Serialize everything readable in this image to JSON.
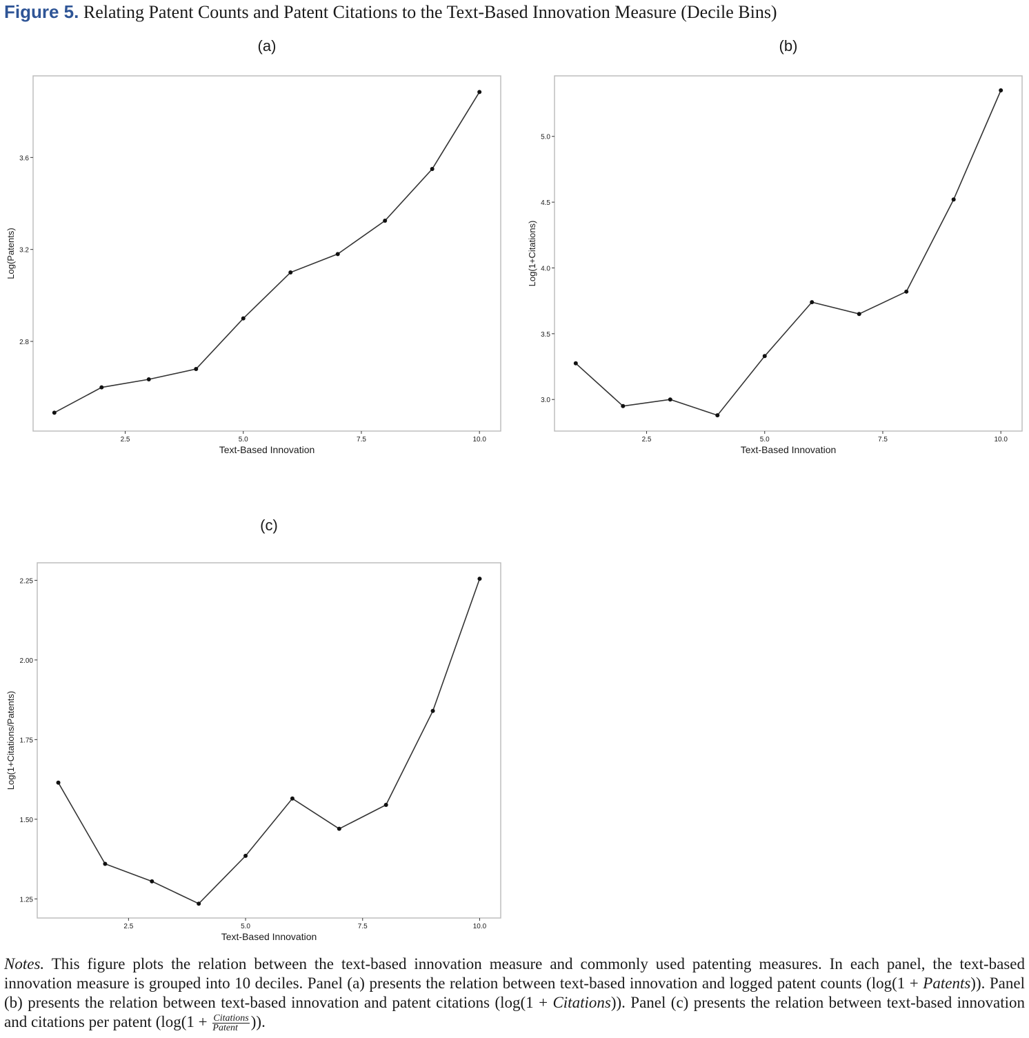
{
  "figure": {
    "label": "Figure 5.",
    "title": "Relating Patent Counts and Patent Citations to the Text-Based Innovation Measure (Decile Bins)"
  },
  "notes": {
    "lead": "Notes.",
    "part1": "This figure plots the relation between the text-based innovation measure and commonly used patenting measures. In each panel, the text-based innovation measure is grouped into 10 deciles. Panel (a) presents the relation between text-based innovation and logged patent counts (log(1 + ",
    "patents": "Patents",
    "part2": ")). Panel (b) presents the relation between text-based innovation and patent citations (log(1 + ",
    "citations": "Citations",
    "part3": ")). Panel (c) presents the relation between text-based innovation and citations per patent (log(1 + ",
    "frac_num": "Citations",
    "frac_den": "Patent",
    "part4": "))."
  },
  "chart_data": [
    {
      "type": "line",
      "panel": "(a)",
      "xlabel": "Text-Based Innovation",
      "ylabel": "Log(Patents)",
      "x": [
        1,
        2,
        3,
        4,
        5,
        6,
        7,
        8,
        9,
        10
      ],
      "values": [
        2.49,
        2.6,
        2.635,
        2.68,
        2.9,
        3.1,
        3.18,
        3.325,
        3.55,
        3.885
      ],
      "xlim": [
        0.55,
        10.45
      ],
      "ylim": [
        2.41,
        3.955
      ],
      "xticks": [
        2.5,
        5.0,
        7.5,
        10.0
      ],
      "xticklabels": [
        "2.5",
        "5.0",
        "7.5",
        "10.0"
      ],
      "yticks": [
        2.8,
        3.2,
        3.6
      ],
      "yticklabels": [
        "2.8",
        "3.2",
        "3.6"
      ]
    },
    {
      "type": "line",
      "panel": "(b)",
      "xlabel": "Text-Based Innovation",
      "ylabel": "Log(1+Citations)",
      "x": [
        1,
        2,
        3,
        4,
        5,
        6,
        7,
        8,
        9,
        10
      ],
      "values": [
        3.275,
        2.95,
        3.0,
        2.88,
        3.33,
        3.74,
        3.65,
        3.82,
        4.52,
        5.35
      ],
      "xlim": [
        0.55,
        10.45
      ],
      "ylim": [
        2.76,
        5.46
      ],
      "xticks": [
        2.5,
        5.0,
        7.5,
        10.0
      ],
      "xticklabels": [
        "2.5",
        "5.0",
        "7.5",
        "10.0"
      ],
      "yticks": [
        3.0,
        3.5,
        4.0,
        4.5,
        5.0
      ],
      "yticklabels": [
        "3.0",
        "3.5",
        "4.0",
        "4.5",
        "5.0"
      ]
    },
    {
      "type": "line",
      "panel": "(c)",
      "xlabel": "Text-Based Innovation",
      "ylabel": "Log(1+Citations/Patents)",
      "x": [
        1,
        2,
        3,
        4,
        5,
        6,
        7,
        8,
        9,
        10
      ],
      "values": [
        1.615,
        1.36,
        1.305,
        1.235,
        1.385,
        1.565,
        1.47,
        1.545,
        1.84,
        2.255
      ],
      "xlim": [
        0.55,
        10.45
      ],
      "ylim": [
        1.19,
        2.305
      ],
      "xticks": [
        2.5,
        5.0,
        7.5,
        10.0
      ],
      "xticklabels": [
        "2.5",
        "5.0",
        "7.5",
        "10.0"
      ],
      "yticks": [
        1.25,
        1.5,
        1.75,
        2.0,
        2.25
      ],
      "yticklabels": [
        "1.25",
        "1.50",
        "1.75",
        "2.00",
        "2.25"
      ]
    }
  ]
}
